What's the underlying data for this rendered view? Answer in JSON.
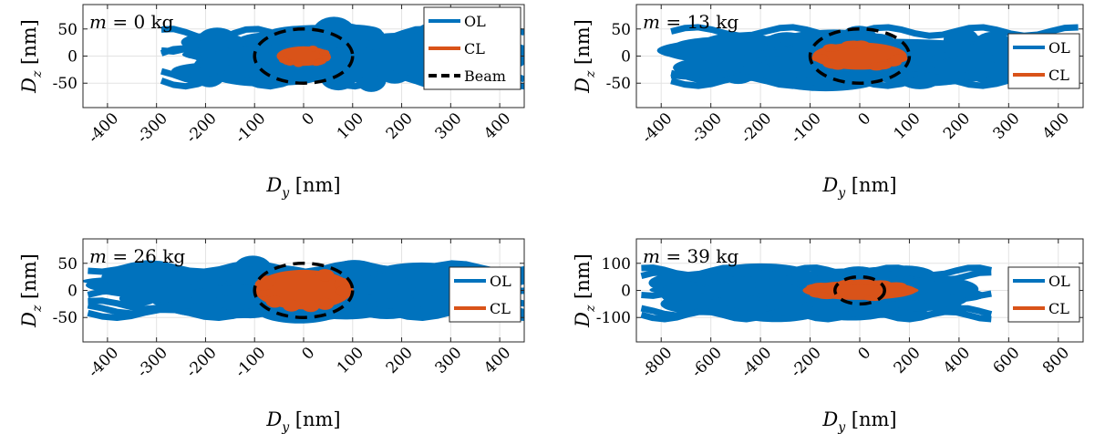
{
  "chart_data": [
    {
      "type": "scatter",
      "title": "",
      "annotation": "m = 0 kg",
      "annotation_math": "m",
      "annotation_rest": " = 0 kg",
      "xlabel_sym": "D",
      "xlabel_sub": "y",
      "xlabel_unit": " [nm]",
      "ylabel_sym": "D",
      "ylabel_sub": "z",
      "ylabel_unit": " [nm]",
      "xlim": [
        -450,
        450
      ],
      "ylim": [
        -95,
        95
      ],
      "xticks": [
        -400,
        -300,
        -200,
        -100,
        0,
        100,
        200,
        300,
        400
      ],
      "yticks": [
        -50,
        0,
        50
      ],
      "legend": {
        "position": "top-right",
        "entries": [
          "OL",
          "CL",
          "Beam"
        ]
      },
      "grid": true,
      "series": [
        {
          "name": "OL",
          "color": "#0072BD",
          "extent_x": [
            -290,
            450
          ],
          "extent_y": [
            -78,
            78
          ]
        },
        {
          "name": "CL",
          "color": "#D95319",
          "extent_x": [
            -55,
            55
          ],
          "extent_y": [
            -18,
            18
          ]
        },
        {
          "name": "Beam",
          "color": "#000000",
          "style": "dashed",
          "rx": 100,
          "ry": 50
        }
      ]
    },
    {
      "type": "scatter",
      "title": "",
      "annotation": "m = 13 kg",
      "annotation_math": "m",
      "annotation_rest": " = 13 kg",
      "xlabel_sym": "D",
      "xlabel_sub": "y",
      "xlabel_unit": " [nm]",
      "ylabel_sym": "D",
      "ylabel_sub": "z",
      "ylabel_unit": " [nm]",
      "xlim": [
        -450,
        450
      ],
      "ylim": [
        -95,
        95
      ],
      "xticks": [
        -400,
        -300,
        -200,
        -100,
        0,
        100,
        200,
        300,
        400
      ],
      "yticks": [
        -50,
        0,
        50
      ],
      "legend": {
        "position": "right",
        "entries": [
          "OL",
          "CL"
        ]
      },
      "grid": true,
      "series": [
        {
          "name": "OL",
          "color": "#0072BD",
          "extent_x": [
            -380,
            440
          ],
          "extent_y": [
            -70,
            62
          ]
        },
        {
          "name": "CL",
          "color": "#D95319",
          "extent_x": [
            -95,
            95
          ],
          "extent_y": [
            -25,
            25
          ]
        },
        {
          "name": "Beam",
          "color": "#000000",
          "style": "dashed",
          "rx": 100,
          "ry": 50
        }
      ]
    },
    {
      "type": "scatter",
      "title": "",
      "annotation": "m = 26 kg",
      "annotation_math": "m",
      "annotation_rest": " = 26 kg",
      "xlabel_sym": "D",
      "xlabel_sub": "y",
      "xlabel_unit": " [nm]",
      "ylabel_sym": "D",
      "ylabel_sub": "z",
      "ylabel_unit": " [nm]",
      "xlim": [
        -450,
        450
      ],
      "ylim": [
        -95,
        95
      ],
      "xticks": [
        -400,
        -300,
        -200,
        -100,
        0,
        100,
        200,
        300,
        400
      ],
      "yticks": [
        -50,
        0,
        50
      ],
      "legend": {
        "position": "right",
        "entries": [
          "OL",
          "CL"
        ]
      },
      "grid": true,
      "series": [
        {
          "name": "OL",
          "color": "#0072BD",
          "extent_x": [
            -440,
            450
          ],
          "extent_y": [
            -62,
            68
          ]
        },
        {
          "name": "CL",
          "color": "#D95319",
          "extent_x": [
            -100,
            100
          ],
          "extent_y": [
            -35,
            38
          ]
        },
        {
          "name": "Beam",
          "color": "#000000",
          "style": "dashed",
          "rx": 100,
          "ry": 50
        }
      ]
    },
    {
      "type": "scatter",
      "title": "",
      "annotation": "m = 39 kg",
      "annotation_math": "m",
      "annotation_rest": " = 39 kg",
      "xlabel_sym": "D",
      "xlabel_sub": "y",
      "xlabel_unit": " [nm]",
      "ylabel_sym": "D",
      "ylabel_sub": "z",
      "ylabel_unit": " [nm]",
      "xlim": [
        -900,
        900
      ],
      "ylim": [
        -190,
        190
      ],
      "xticks": [
        -800,
        -600,
        -400,
        -200,
        0,
        200,
        400,
        600,
        800
      ],
      "yticks": [
        -100,
        0,
        100
      ],
      "legend": {
        "position": "right",
        "entries": [
          "OL",
          "CL"
        ]
      },
      "grid": true,
      "series": [
        {
          "name": "OL",
          "color": "#0072BD",
          "extent_x": [
            -880,
            530
          ],
          "extent_y": [
            -120,
            110
          ]
        },
        {
          "name": "CL",
          "color": "#D95319",
          "extent_x": [
            -230,
            230
          ],
          "extent_y": [
            -35,
            35
          ]
        },
        {
          "name": "Beam",
          "color": "#000000",
          "style": "dashed",
          "rx": 100,
          "ry": 50
        }
      ]
    }
  ]
}
